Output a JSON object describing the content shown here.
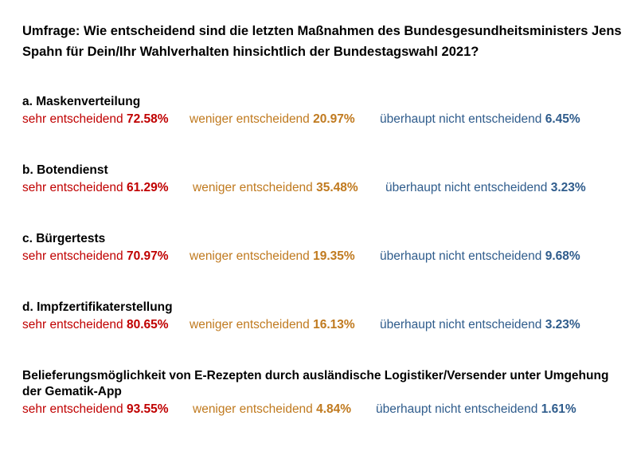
{
  "title": "Umfrage: Wie entscheidend sind die letzten Maßnahmen des Bundesgesundheitsministers Jens Spahn für Dein/Ihr Wahlverhalten hinsichtlich der Bundestagswahl 2021?",
  "colors": {
    "sehr": "#c00000",
    "weniger": "#c07a1f",
    "nicht": "#2f5c8c"
  },
  "categories": {
    "sehr": "sehr entscheidend",
    "weniger": "weniger entscheidend",
    "nicht": "überhaupt nicht entscheidend"
  },
  "sections": [
    {
      "label": "a. Maskenverteilung",
      "sehr": "72.58%",
      "weniger": "20.97%",
      "nicht": "6.45%"
    },
    {
      "label": "b. Botendienst",
      "sehr": "61.29%",
      "weniger": "35.48%",
      "nicht": "3.23%"
    },
    {
      "label": "c. Bürgertests",
      "sehr": "70.97%",
      "weniger": "19.35%",
      "nicht": "9.68%"
    },
    {
      "label": "d. Impfzertifikaterstellung",
      "sehr": "80.65%",
      "weniger": "16.13%",
      "nicht": "3.23%"
    },
    {
      "label": "Belieferungsmöglichkeit von E-Rezepten durch ausländische Logistiker/Versender unter Umgehung der Gematik-App",
      "sehr": "93.55%",
      "weniger": "4.84%",
      "nicht": "1.61%"
    }
  ]
}
